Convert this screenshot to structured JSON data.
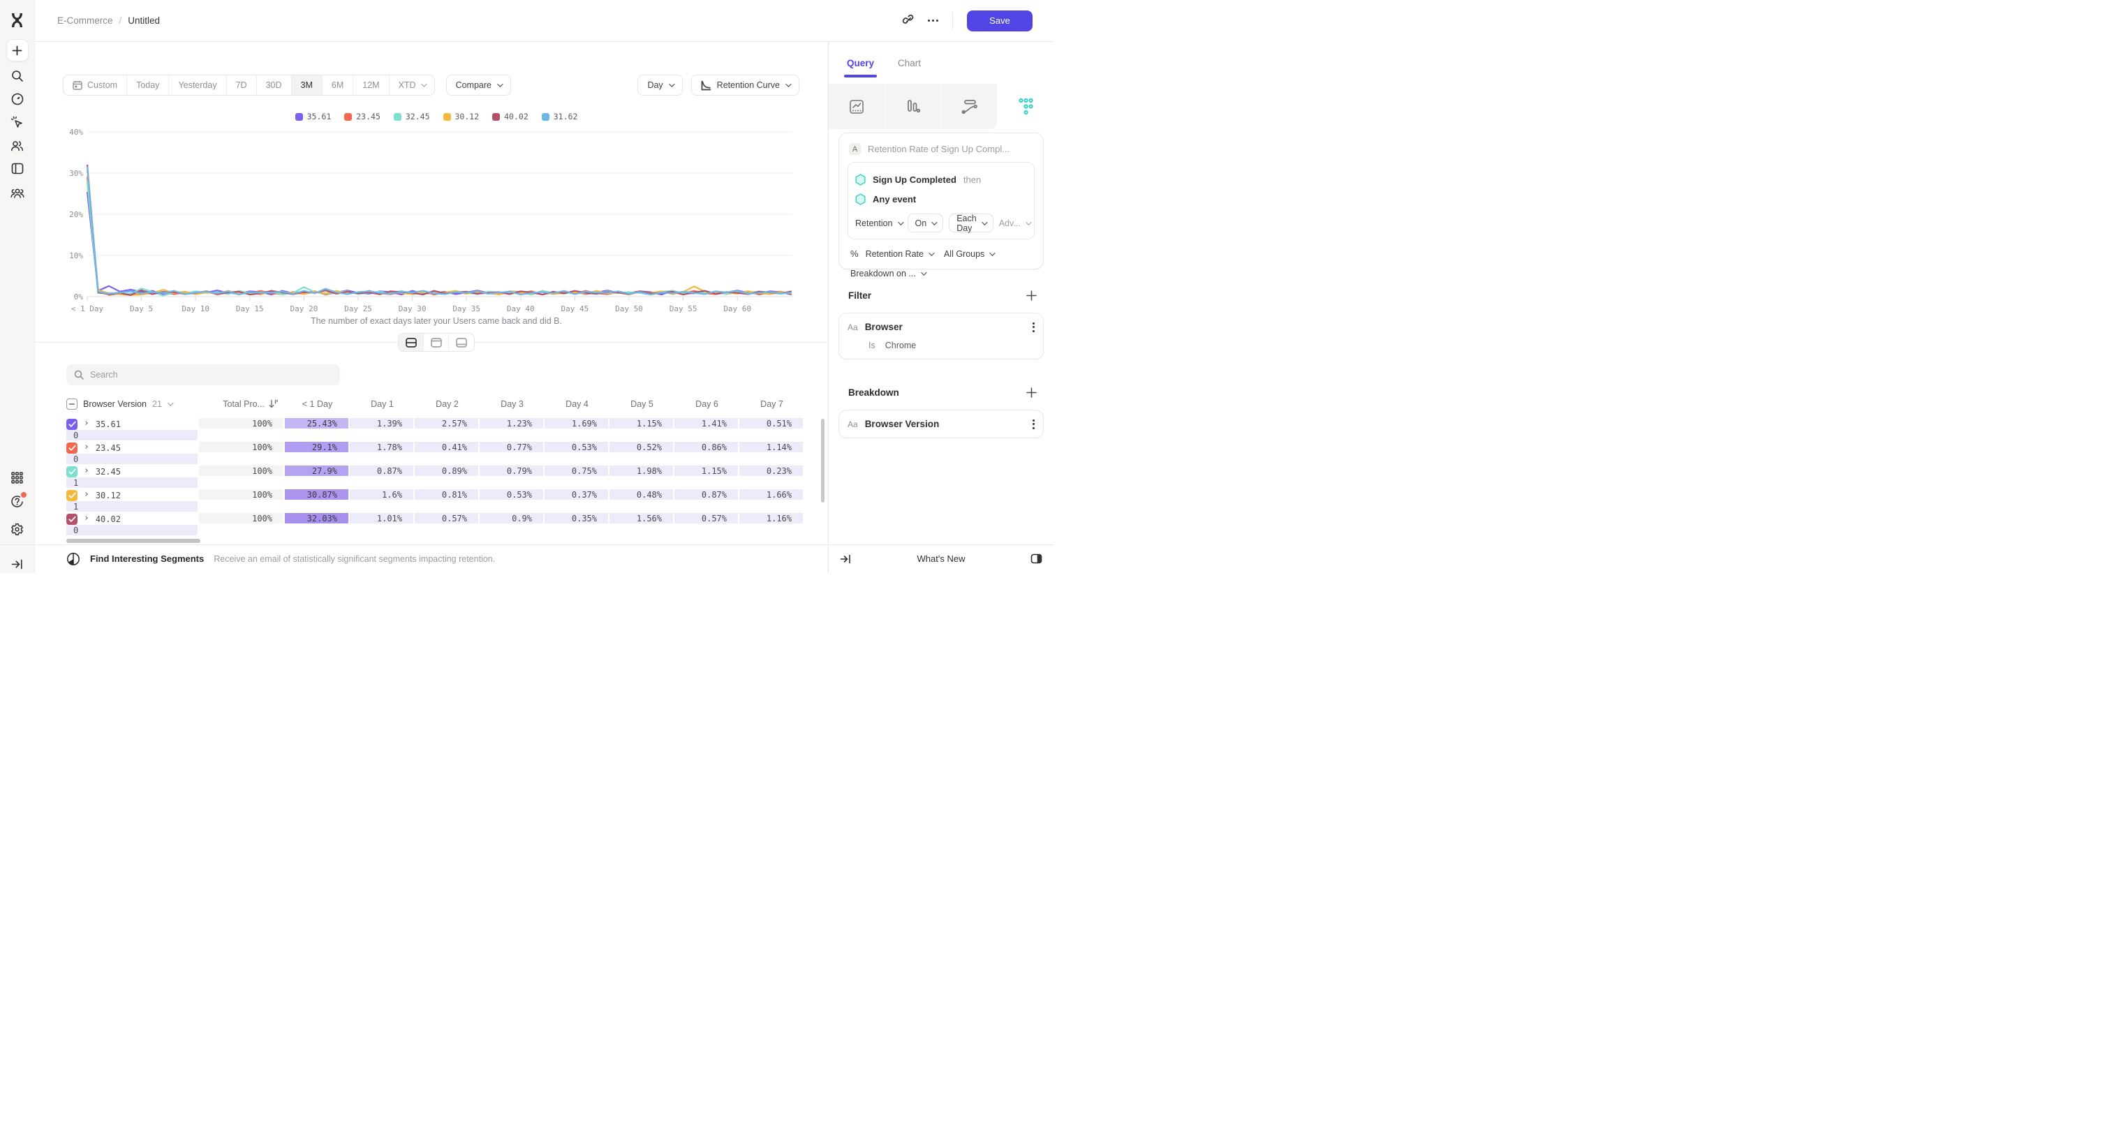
{
  "topbar": {
    "breadcrumb_project": "E-Commerce",
    "breadcrumb_sep": "/",
    "breadcrumb_page": "Untitled",
    "save_label": "Save"
  },
  "toolbar": {
    "ranges": [
      "Custom",
      "Today",
      "Yesterday",
      "7D",
      "30D",
      "3M",
      "6M",
      "12M",
      "XTD"
    ],
    "selected_range": "3M",
    "compare_label": "Compare",
    "granularity_label": "Day",
    "chart_type_label": "Retention Curve"
  },
  "chart_data": {
    "type": "line",
    "title": "",
    "xlabel": "",
    "ylabel": "",
    "ylim": [
      0,
      40
    ],
    "y_ticks": [
      0,
      10,
      20,
      30,
      40
    ],
    "y_tick_suffix": "%",
    "x_tick_days": [
      0,
      5,
      10,
      15,
      20,
      25,
      30,
      35,
      40,
      45,
      50,
      55,
      60
    ],
    "x_tick_labels": [
      "< 1 Day",
      "Day 5",
      "Day 10",
      "Day 15",
      "Day 20",
      "Day 25",
      "Day 30",
      "Day 35",
      "Day 40",
      "Day 45",
      "Day 50",
      "Day 55",
      "Day 60"
    ],
    "legend_position": "top-center",
    "grid": true,
    "series": [
      {
        "name": "35.61",
        "color": "#7c5ef0",
        "values": [
          25.43,
          1.39,
          2.57,
          1.23,
          1.69,
          1.15,
          1.41,
          0.51,
          0.8,
          1.2,
          0.6,
          1.0,
          1.5,
          0.9,
          0.7,
          1.3,
          1.1,
          0.5,
          1.4,
          0.8,
          0.8,
          1.2,
          0.6,
          1.0,
          1.5,
          0.9,
          0.7,
          1.3,
          1.1,
          0.5,
          1.4,
          0.8,
          0.8,
          1.2,
          0.6,
          1.0,
          1.5,
          0.9,
          0.7,
          1.3,
          1.1,
          0.5,
          1.4,
          0.8,
          0.8,
          1.2,
          0.6,
          1.0,
          1.5,
          0.9,
          0.7,
          1.3,
          1.1,
          0.5,
          1.4,
          0.8,
          0.8,
          1.2,
          0.6,
          1.0,
          1.5,
          0.9,
          0.7,
          1.3,
          1.1,
          0.5
        ]
      },
      {
        "name": "23.45",
        "color": "#f2674d",
        "values": [
          29.1,
          1.78,
          0.41,
          0.77,
          0.53,
          0.52,
          0.86,
          1.14,
          0.6,
          1.1,
          0.9,
          1.3,
          0.5,
          1.0,
          1.2,
          0.7,
          1.4,
          0.8,
          0.6,
          1.1,
          0.9,
          1.3,
          0.5,
          1.0,
          1.2,
          0.7,
          1.4,
          0.8,
          0.6,
          1.1,
          0.9,
          1.3,
          0.5,
          1.0,
          1.2,
          0.7,
          1.4,
          0.8,
          0.6,
          1.1,
          0.9,
          1.3,
          0.5,
          1.0,
          1.2,
          0.7,
          1.4,
          0.8,
          0.6,
          1.1,
          0.9,
          1.3,
          0.5,
          1.0,
          1.2,
          0.7,
          1.4,
          0.8,
          0.6,
          1.1,
          0.9,
          1.3,
          0.5,
          1.0,
          1.2,
          0.7
        ]
      },
      {
        "name": "32.45",
        "color": "#7de0cf",
        "values": [
          27.9,
          0.87,
          0.89,
          0.79,
          0.75,
          1.98,
          1.15,
          0.23,
          1.0,
          0.7,
          1.3,
          0.9,
          1.1,
          0.6,
          1.4,
          0.8,
          1.0,
          1.2,
          0.5,
          0.9,
          2.3,
          1.1,
          0.7,
          1.0,
          1.3,
          0.6,
          0.9,
          1.2,
          0.8,
          1.4,
          0.5,
          1.0,
          1.1,
          0.7,
          1.3,
          0.9,
          0.6,
          1.2,
          1.0,
          0.8,
          1.1,
          0.5,
          1.4,
          0.9,
          0.7,
          1.2,
          1.0,
          0.6,
          1.3,
          0.8,
          1.1,
          0.9,
          0.5,
          1.2,
          1.4,
          0.7,
          1.0,
          0.9,
          1.2,
          0.6,
          1.1,
          0.8,
          1.3,
          0.9,
          0.7,
          1.0
        ]
      },
      {
        "name": "30.12",
        "color": "#f5b93f",
        "values": [
          30.87,
          1.6,
          0.81,
          0.53,
          0.37,
          0.48,
          0.87,
          1.66,
          0.9,
          1.2,
          0.6,
          1.0,
          0.8,
          1.4,
          0.7,
          1.1,
          0.5,
          1.3,
          0.9,
          1.0,
          0.6,
          1.2,
          0.8,
          1.4,
          0.7,
          1.0,
          1.1,
          0.5,
          1.3,
          0.9,
          0.6,
          1.2,
          0.8,
          1.0,
          1.4,
          0.7,
          1.1,
          0.9,
          0.5,
          1.3,
          1.0,
          0.8,
          1.2,
          0.6,
          0.9,
          1.1,
          0.7,
          1.4,
          0.8,
          1.0,
          0.5,
          1.2,
          0.9,
          1.3,
          0.6,
          1.1,
          2.5,
          1.2,
          0.8,
          1.0,
          0.7,
          1.3,
          0.9,
          0.6,
          1.1,
          0.8
        ]
      },
      {
        "name": "40.02",
        "color": "#b5506b",
        "values": [
          32.03,
          1.01,
          0.57,
          0.9,
          0.35,
          1.56,
          0.57,
          1.16,
          1.1,
          0.6,
          0.9,
          1.3,
          0.7,
          1.0,
          1.2,
          0.5,
          0.8,
          1.4,
          1.0,
          0.6,
          1.1,
          0.9,
          1.5,
          0.7,
          1.2,
          0.8,
          1.0,
          0.6,
          1.3,
          1.1,
          0.9,
          0.5,
          1.4,
          0.8,
          1.0,
          1.2,
          0.7,
          0.9,
          1.1,
          0.6,
          1.3,
          1.0,
          0.5,
          1.2,
          0.8,
          1.4,
          0.9,
          0.7,
          1.1,
          1.0,
          0.6,
          1.3,
          0.8,
          0.9,
          1.2,
          0.5,
          1.0,
          1.4,
          0.7,
          1.1,
          0.9,
          0.6,
          1.2,
          1.0,
          0.8,
          1.3
        ]
      },
      {
        "name": "31.62",
        "color": "#6cb6e9",
        "values": [
          31.62,
          1.2,
          0.7,
          1.0,
          1.3,
          0.8,
          1.1,
          0.9,
          1.4,
          0.6,
          1.0,
          1.2,
          0.8,
          1.3,
          0.5,
          1.1,
          0.9,
          1.0,
          1.2,
          0.7,
          1.4,
          0.8,
          1.9,
          1.0,
          0.6,
          1.1,
          1.3,
          0.9,
          0.7,
          1.2,
          1.0,
          1.4,
          0.8,
          0.6,
          1.1,
          0.9,
          1.3,
          0.7,
          1.0,
          1.2,
          0.5,
          0.9,
          1.1,
          0.8,
          1.4,
          0.6,
          1.2,
          1.0,
          0.9,
          1.3,
          0.7,
          1.1,
          0.5,
          1.0,
          0.8,
          1.2,
          0.9,
          0.6,
          1.3,
          1.0,
          1.4,
          0.7,
          0.9,
          1.1,
          0.8,
          1.0
        ]
      }
    ]
  },
  "caption": "The number of exact days later your Users came back and did B.",
  "search": {
    "placeholder": "Search"
  },
  "table": {
    "group_column": "Browser Version",
    "group_count": "21",
    "total_column": "Total Pro...",
    "day_columns": [
      "< 1 Day",
      "Day 1",
      "Day 2",
      "Day 3",
      "Day 4",
      "Day 5",
      "Day 6",
      "Day 7"
    ],
    "rows": [
      {
        "label": "35.61",
        "color": "#7c5ef0",
        "first_shade": "#c4b5f5",
        "total": "100%",
        "cells": [
          "25.43%",
          "1.39%",
          "2.57%",
          "1.23%",
          "1.69%",
          "1.15%",
          "1.41%",
          "0.51%"
        ],
        "partial": "0"
      },
      {
        "label": "23.45",
        "color": "#f2674d",
        "first_shade": "#b19df1",
        "total": "100%",
        "cells": [
          "29.1%",
          "1.78%",
          "0.41%",
          "0.77%",
          "0.53%",
          "0.52%",
          "0.86%",
          "1.14%"
        ],
        "partial": "0"
      },
      {
        "label": "32.45",
        "color": "#7de0cf",
        "first_shade": "#b5a3f2",
        "total": "100%",
        "cells": [
          "27.9%",
          "0.87%",
          "0.89%",
          "0.79%",
          "0.75%",
          "1.98%",
          "1.15%",
          "0.23%"
        ],
        "partial": "1"
      },
      {
        "label": "30.12",
        "color": "#f5b93f",
        "first_shade": "#ab95ef",
        "total": "100%",
        "cells": [
          "30.87%",
          "1.6%",
          "0.81%",
          "0.53%",
          "0.37%",
          "0.48%",
          "0.87%",
          "1.66%"
        ],
        "partial": "1"
      },
      {
        "label": "40.02",
        "color": "#b5506b",
        "first_shade": "#a78fee",
        "total": "100%",
        "cells": [
          "32.03%",
          "1.01%",
          "0.57%",
          "0.9%",
          "0.35%",
          "1.56%",
          "0.57%",
          "1.16%"
        ],
        "partial": "0"
      }
    ]
  },
  "footer": {
    "title": "Find Interesting Segments",
    "description": "Receive an email of statistically significant segments impacting retention."
  },
  "panel": {
    "tabs": [
      "Query",
      "Chart"
    ],
    "active_tab": "Query",
    "query": {
      "chip": "A",
      "title": "Retention Rate of Sign Up Compl...",
      "event1": "Sign Up Completed",
      "then_label": "then",
      "event2": "Any event",
      "retention_dd": "Retention",
      "on_dd": "On",
      "each_day_dd": "Each Day",
      "advanced_dd": "Adv...",
      "percent_sign": "%",
      "rate_dd": "Retention Rate",
      "groups_dd": "All Groups",
      "breakdown_dd": "Breakdown on ..."
    },
    "filter": {
      "header": "Filter",
      "aa": "Aa",
      "property": "Browser",
      "operator": "Is",
      "value": "Chrome"
    },
    "breakdown": {
      "header": "Breakdown",
      "aa": "Aa",
      "property": "Browser Version"
    },
    "whats_new": "What's New"
  },
  "colors": {
    "accent": "#5145e6",
    "teal": "#2fd3c2",
    "lavender_cell": "#edebfa",
    "total_cell": "#f4f4f2"
  }
}
